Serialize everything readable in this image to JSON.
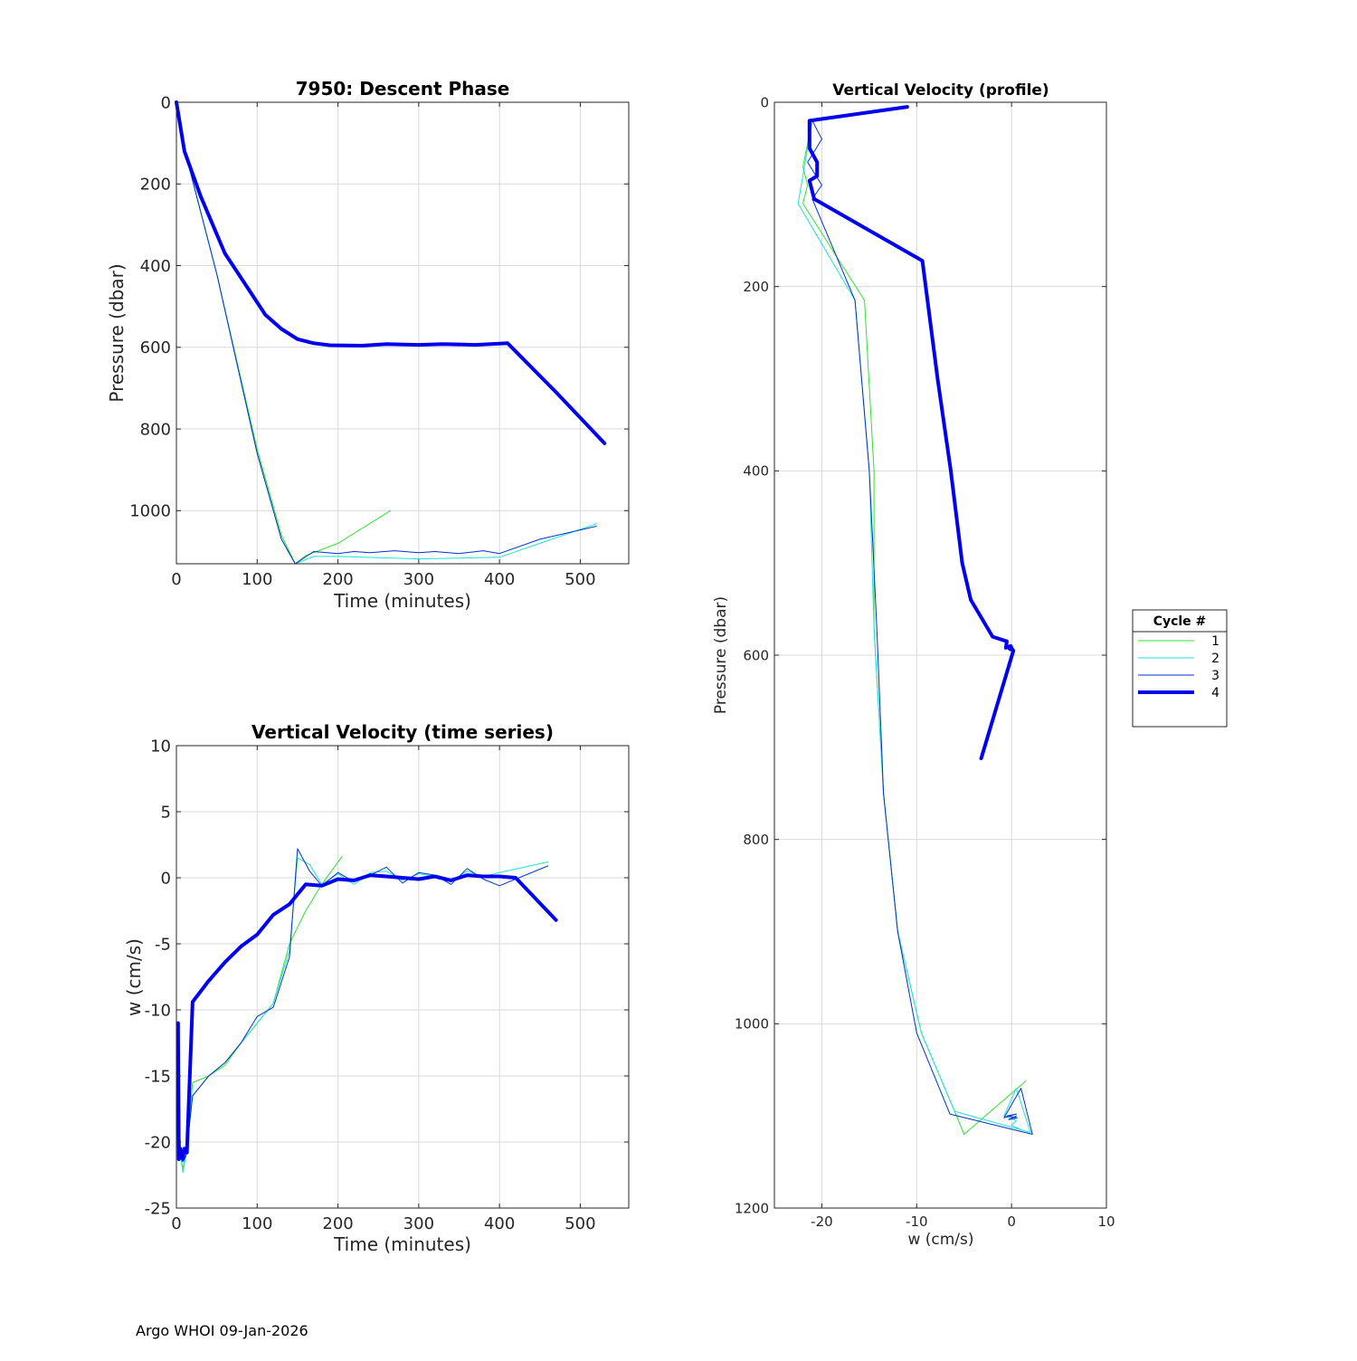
{
  "footer": "Argo WHOI 09-Jan-2026",
  "colors": {
    "cycle1": "#33e033",
    "cycle2": "#1de3d5",
    "cycle3": "#0033cc",
    "cycle4": "#0000ee",
    "grid": "#d9d9d9",
    "axis": "#262626"
  },
  "legend": {
    "title": "Cycle #",
    "entries": [
      "1",
      "2",
      "3",
      "4"
    ]
  },
  "chart_data": [
    {
      "id": "descent",
      "type": "line",
      "title": "7950: Descent Phase",
      "xlabel": "Time (minutes)",
      "ylabel": "Pressure (dbar)",
      "xlim": [
        0,
        560
      ],
      "ylim": [
        0,
        1130
      ],
      "y_reversed": true,
      "grid": true,
      "xticks": [
        0,
        100,
        200,
        300,
        400,
        500
      ],
      "yticks": [
        0,
        200,
        400,
        600,
        800,
        1000
      ],
      "series": [
        {
          "name": "1",
          "x": [
            0,
            10,
            50,
            100,
            130,
            147,
            160,
            200,
            265
          ],
          "y": [
            0,
            115,
            420,
            850,
            1060,
            1130,
            1110,
            1080,
            1000
          ]
        },
        {
          "name": "2",
          "x": [
            0,
            10,
            50,
            100,
            130,
            147,
            170,
            200,
            250,
            300,
            350,
            400,
            450,
            520
          ],
          "y": [
            0,
            115,
            420,
            860,
            1070,
            1130,
            1112,
            1112,
            1115,
            1118,
            1116,
            1114,
            1080,
            1032
          ]
        },
        {
          "name": "3",
          "x": [
            0,
            10,
            50,
            100,
            130,
            147,
            170,
            200,
            220,
            240,
            270,
            300,
            320,
            350,
            380,
            400,
            450,
            520
          ],
          "y": [
            0,
            115,
            420,
            860,
            1070,
            1130,
            1100,
            1105,
            1100,
            1103,
            1098,
            1103,
            1100,
            1105,
            1098,
            1105,
            1070,
            1038
          ]
        },
        {
          "name": "4",
          "x": [
            0,
            10,
            30,
            60,
            90,
            110,
            130,
            150,
            170,
            190,
            230,
            260,
            300,
            330,
            370,
            410,
            470,
            530
          ],
          "y": [
            0,
            120,
            230,
            370,
            460,
            520,
            555,
            580,
            590,
            595,
            596,
            592,
            594,
            592,
            594,
            590,
            710,
            835
          ]
        }
      ]
    },
    {
      "id": "vvts",
      "type": "line",
      "title": "Vertical Velocity (time series)",
      "xlabel": "Time (minutes)",
      "ylabel": "w (cm/s)",
      "xlim": [
        0,
        560
      ],
      "ylim": [
        -25,
        10
      ],
      "grid": true,
      "xticks": [
        0,
        100,
        200,
        300,
        400,
        500
      ],
      "yticks": [
        10,
        5,
        0,
        -5,
        -10,
        -15,
        -20,
        -25
      ],
      "series": [
        {
          "name": "1",
          "x": [
            2,
            5,
            8,
            12,
            20,
            40,
            60,
            80,
            100,
            120,
            140,
            160,
            180,
            205
          ],
          "y": [
            -14,
            -21,
            -22,
            -21,
            -15.5,
            -15,
            -14.2,
            -12.5,
            -11,
            -9.5,
            -5,
            -2.5,
            -0.5,
            1.6
          ]
        },
        {
          "name": "2",
          "x": [
            2,
            5,
            8,
            12,
            20,
            40,
            60,
            80,
            100,
            120,
            140,
            150,
            165,
            180,
            200,
            220,
            240,
            260,
            280,
            300,
            320,
            340,
            360,
            380,
            400,
            460
          ],
          "y": [
            -14,
            -21,
            -22.3,
            -21,
            -16.5,
            -15,
            -14,
            -12.5,
            -11,
            -9.5,
            -5.5,
            1.5,
            1,
            -0.5,
            0.3,
            -0.5,
            0.4,
            0.5,
            -0.2,
            0.3,
            0.1,
            -0.3,
            0.5,
            0.1,
            0.4,
            1.2
          ]
        },
        {
          "name": "3",
          "x": [
            2,
            5,
            8,
            12,
            20,
            40,
            60,
            80,
            100,
            120,
            140,
            150,
            165,
            180,
            200,
            220,
            240,
            260,
            280,
            300,
            320,
            340,
            360,
            380,
            400,
            460
          ],
          "y": [
            -14,
            -21,
            -21.5,
            -21,
            -16.5,
            -15,
            -14,
            -12.5,
            -10.5,
            -9.8,
            -6,
            2.2,
            0.5,
            -0.6,
            0.4,
            -0.3,
            0.2,
            0.8,
            -0.4,
            0.4,
            0.2,
            -0.5,
            0.7,
            -0.1,
            -0.6,
            0.9
          ]
        },
        {
          "name": "4",
          "x": [
            2,
            3,
            5,
            8,
            10,
            13,
            20,
            40,
            60,
            80,
            100,
            120,
            140,
            160,
            180,
            200,
            220,
            240,
            260,
            280,
            300,
            320,
            340,
            360,
            380,
            400,
            420,
            470
          ],
          "y": [
            -11,
            -21.3,
            -20.5,
            -21.3,
            -20.5,
            -20.8,
            -9.4,
            -7.8,
            -6.4,
            -5.2,
            -4.3,
            -2.8,
            -2,
            -0.5,
            -0.6,
            -0.1,
            -0.2,
            0.2,
            0.1,
            0,
            -0.1,
            0.1,
            -0.2,
            0.2,
            0.1,
            0.1,
            0,
            -3.2
          ]
        }
      ]
    },
    {
      "id": "vvprofile",
      "type": "line",
      "title": "Vertical Velocity (profile)",
      "xlabel": "w (cm/s)",
      "ylabel": "Pressure (dbar)",
      "xlim": [
        -25,
        10
      ],
      "ylim": [
        0,
        1200
      ],
      "y_reversed": true,
      "grid": true,
      "xticks": [
        -20,
        -10,
        0,
        10
      ],
      "yticks": [
        0,
        200,
        400,
        600,
        800,
        1000,
        1200
      ],
      "series": [
        {
          "name": "1",
          "x": [
            -21,
            -21.5,
            -22,
            -21.5,
            -22,
            -15.5,
            -14.5,
            -14.5,
            -13.5,
            -12,
            -9.5,
            -6,
            -5,
            1.5
          ],
          "y": [
            20,
            45,
            70,
            90,
            110,
            215,
            400,
            570,
            750,
            900,
            1010,
            1095,
            1120,
            1062
          ]
        },
        {
          "name": "2",
          "x": [
            -21,
            -21.5,
            -22.5,
            -16.5,
            -15,
            -14.5,
            -13.5,
            -12,
            -9.5,
            -6,
            2,
            0.5,
            -0.8,
            0.5,
            0,
            1
          ],
          "y": [
            20,
            50,
            110,
            215,
            400,
            570,
            750,
            900,
            1010,
            1095,
            1118,
            1070,
            1100,
            1105,
            1110,
            1115
          ]
        },
        {
          "name": "3",
          "x": [
            -21,
            -20,
            -21.5,
            -20,
            -21,
            -16.5,
            -15,
            -14.2,
            -13.5,
            -12,
            -10,
            -6.5,
            2.2,
            1,
            -0.8,
            0.5,
            -0.5,
            0.6,
            -0.3,
            0.5
          ],
          "y": [
            20,
            40,
            65,
            90,
            105,
            215,
            400,
            570,
            750,
            900,
            1010,
            1098,
            1120,
            1070,
            1102,
            1098,
            1100,
            1102,
            1104,
            1100
          ]
        },
        {
          "name": "4",
          "x": [
            -11,
            -21.3,
            -21.3,
            -20.5,
            -20.5,
            -21.3,
            -20.8,
            -9.4,
            -7.8,
            -6.4,
            -5.2,
            -4.3,
            -2.8,
            -2,
            -0.5,
            -0.6,
            -0.1,
            0.1,
            -0.2,
            0.2,
            -3.2
          ],
          "y": [
            5,
            20,
            50,
            65,
            80,
            85,
            105,
            172,
            300,
            400,
            500,
            540,
            566,
            580,
            585,
            592,
            590,
            594,
            593,
            595,
            712
          ]
        }
      ]
    }
  ]
}
